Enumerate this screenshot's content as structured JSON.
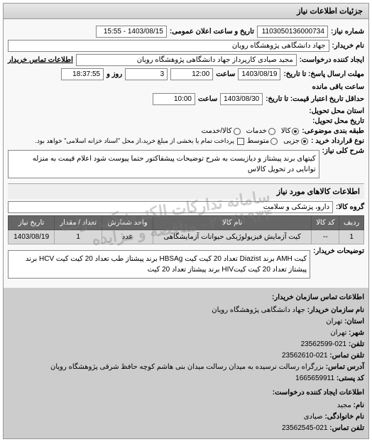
{
  "panel_title": "جزئیات اطلاعات نیاز",
  "request_no_label": "شماره نیاز:",
  "request_no": "1103050136000734",
  "announce_label": "تاریخ و ساعت اعلان عمومی:",
  "announce_value": "1403/08/15 - 15:55",
  "buyer_label": "نام خریدار:",
  "buyer_value": "جهاد دانشگاهی پژوهشگاه رویان",
  "creator_label": "ایجاد کننده درخواست:",
  "creator_value": "مجید صیادی کارپرداز جهاد دانشگاهی پژوهشگاه رویان",
  "buyer_contact_label": "اطلاعات تماس خریدار",
  "deadline_label": "مهلت ارسال پاسخ: تا تاریخ:",
  "deadline_date": "1403/08/19",
  "time_label": "ساعت",
  "deadline_time": "12:00",
  "days_label": "روز و",
  "days_value": "3",
  "remain_time": "18:37:55",
  "remain_label": "ساعت باقی مانده",
  "validity_label": "حداقل تاریخ اعتبار قیمت: تا تاریخ:",
  "validity_date": "1403/08/30",
  "validity_time": "10:00",
  "delivery_place_label": "استان محل تحویل:",
  "delivery_date_label": "تاریخ محل تحویل:",
  "topic_group_label": "طبقه بندی موضوعی:",
  "radio_kala": "کالا",
  "radio_khadamat": "خدمات",
  "radio_both": "کالا/خدمت",
  "contract_type_label": "نوع قرارداد خرید :",
  "radio_partial": "جزیی",
  "radio_medium": "متوسط",
  "payment_note": "پرداخت تمام یا بخشی از مبلغ خرید،از محل \"اسناد خزانه اسلامی\" خواهد بود.",
  "main_desc_label": "شرح کلی نیاز:",
  "main_desc": "کیتهای برند پیشتاز و دیازیست به شرح توضیحات پیشفاکتور حتما پیوست شود اعلام قیمت به منزله توانایی در تحویل کالاس",
  "goods_section": "اطلاعات کالاهای مورد نیاز",
  "goods_group_label": "گروه کالا:",
  "goods_group": "دارو، پزشکی و سلامت",
  "table": {
    "headers": [
      "ردیف",
      "کد کالا",
      "نام کالا",
      "واحد شمارش",
      "تعداد / مقدار",
      "تاریخ نیاز"
    ],
    "rows": [
      [
        "1",
        "--",
        "کیت آزمایش فیزیولوژیکی حیوانات آزمایشگاهی",
        "عدد",
        "1",
        "1403/08/19"
      ]
    ]
  },
  "buyer_notes_label": "توضیحات خریدار:",
  "buyer_notes": "کیت AMH برند Diazist تعداد 20 کیت کیت HBSAg برند پیشتاز طب تعداد 20 کیت کیت HCV برند پیشتاز تعداد 20 کیت کیتHIV برند پیشتاز تعداد 20 کیت",
  "contact_title": "اطلاعات تماس سازمان خریدار:",
  "contact_org_label": "نام سازمان خریدار:",
  "contact_org": "جهاد دانشگاهی پژوهشگاه رویان",
  "contact_province_label": "استان:",
  "contact_province": "تهران",
  "contact_city_label": "شهر:",
  "contact_city": "تهران",
  "contact_phone_label": "تلفن:",
  "contact_phone": "021-23562599",
  "contact_fax_label": "تلفن تماس:",
  "contact_fax": "021-23562610",
  "contact_address_label": "آدرس تماس:",
  "contact_address": "بزرگراه رسالت نرسیده به میدان رسالت میدان بنی هاشم کوچه حافظ شرقی پژوهشگاه رویان",
  "contact_postal_label": "کد پستی:",
  "contact_postal": "1665659911",
  "creator_section": "اطلاعات ایجاد کننده درخواست:",
  "creator_name_label": "نام:",
  "creator_name": "مجید",
  "creator_family_label": "نام خانوادگی:",
  "creator_family": "صیادی",
  "creator_phone_label": "تلفن تماس:",
  "creator_phone": "021-23562545",
  "watermark_line1": "سامانه تدارکات الکترونیکی دولت",
  "watermark_line2": "۰۲۱-۴۱۹۳۴ مناقصه و مزایده"
}
